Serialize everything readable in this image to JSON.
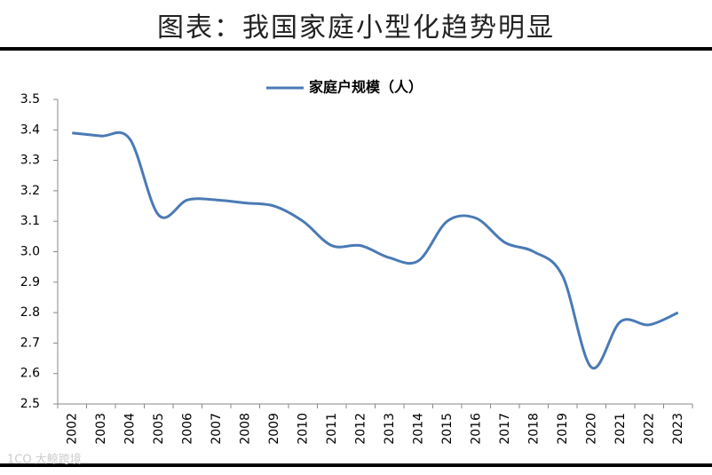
{
  "chart_data": {
    "type": "line",
    "title": "图表：我国家庭小型化趋势明显",
    "categories": [
      "2002",
      "2003",
      "2004",
      "2005",
      "2006",
      "2007",
      "2008",
      "2009",
      "2010",
      "2011",
      "2012",
      "2013",
      "2014",
      "2015",
      "2016",
      "2017",
      "2018",
      "2019",
      "2020",
      "2021",
      "2022",
      "2023"
    ],
    "series": [
      {
        "name": "家庭户规模（人）",
        "color": "#4a7ab5",
        "values": [
          3.39,
          3.38,
          3.37,
          3.12,
          3.17,
          3.17,
          3.16,
          3.15,
          3.1,
          3.02,
          3.02,
          2.98,
          2.97,
          3.1,
          3.11,
          3.03,
          3.0,
          2.92,
          2.62,
          2.77,
          2.76,
          2.8
        ]
      }
    ],
    "ylim": [
      2.5,
      3.5
    ],
    "yticks": [
      {
        "value": 2.5,
        "label": "2.5"
      },
      {
        "value": 2.6,
        "label": "2.6"
      },
      {
        "value": 2.7,
        "label": "2.7"
      },
      {
        "value": 2.8,
        "label": "2.8"
      },
      {
        "value": 2.9,
        "label": "2.9"
      },
      {
        "value": 3.0,
        "label": "3.0"
      },
      {
        "value": 3.1,
        "label": "3.1"
      },
      {
        "value": 3.2,
        "label": "3.2"
      },
      {
        "value": 3.3,
        "label": "3.3"
      },
      {
        "value": 3.4,
        "label": "3.4"
      },
      {
        "value": 3.5,
        "label": "3.5"
      }
    ],
    "grid": false,
    "watermark": "1CO 大鲸跨境"
  }
}
